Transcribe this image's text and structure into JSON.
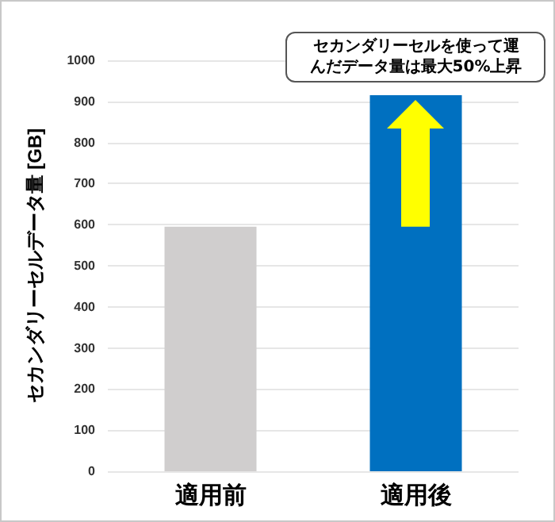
{
  "chart_data": {
    "type": "bar",
    "ylabel": "セカンダリーセルデータ量 [GB]",
    "categories": [
      "適用前",
      "適用後"
    ],
    "values": [
      595,
      915
    ],
    "colors": [
      "#d0cece",
      "#0070c0"
    ],
    "ylim": [
      0,
      1000
    ],
    "yticks": [
      0,
      100,
      200,
      300,
      400,
      500,
      600,
      700,
      800,
      900,
      1000
    ],
    "grid": "y",
    "annotations": [
      {
        "text": "セカンダリーセルを使って運んだデータ量は最大50%上昇",
        "x": "適用後",
        "y": 915
      }
    ]
  }
}
